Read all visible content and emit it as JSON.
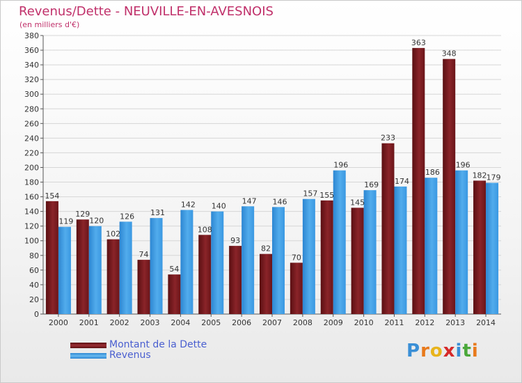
{
  "title": "Revenus/Dette - NEUVILLE-EN-AVESNOIS",
  "subtitle": "(en milliers d'€)",
  "colors": {
    "debt": "#7b1a1e",
    "revenue": "#3a9ae6",
    "title": "#c0306a",
    "legend_text": "#4a5fd0"
  },
  "chart_data": {
    "type": "bar",
    "title": "Revenus/Dette - NEUVILLE-EN-AVESNOIS",
    "subtitle": "(en milliers d'€)",
    "categories": [
      "2000",
      "2001",
      "2002",
      "2003",
      "2004",
      "2005",
      "2006",
      "2007",
      "2008",
      "2009",
      "2010",
      "2011",
      "2012",
      "2013",
      "2014"
    ],
    "series": [
      {
        "name": "Montant de la Dette",
        "values": [
          154,
          129,
          102,
          74,
          54,
          108,
          93,
          82,
          70,
          155,
          145,
          233,
          363,
          348,
          182
        ]
      },
      {
        "name": "Revenus",
        "values": [
          119,
          120,
          126,
          131,
          142,
          140,
          147,
          146,
          157,
          196,
          169,
          174,
          186,
          196,
          179
        ]
      }
    ],
    "ylim": [
      0,
      380
    ],
    "yticks": [
      0,
      20,
      40,
      60,
      80,
      100,
      120,
      140,
      160,
      180,
      200,
      220,
      240,
      260,
      280,
      300,
      320,
      340,
      360,
      380
    ],
    "grid": true,
    "legend_position": "bottom-left"
  },
  "legend": {
    "items": [
      "Montant de la Dette",
      "Revenus"
    ]
  },
  "logo": {
    "text": "Proxiti",
    "letters": [
      "P",
      "r",
      "o",
      "x",
      "i",
      "t",
      "i"
    ],
    "letter_colors": [
      "#3a8fd6",
      "#e87a1c",
      "#e8b41c",
      "#d62a2a",
      "#3a8fd6",
      "#4aa83a",
      "#e87a1c"
    ]
  }
}
